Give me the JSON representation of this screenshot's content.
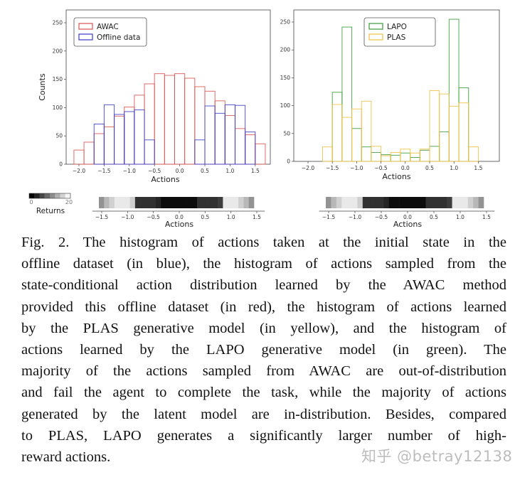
{
  "chart_data": [
    {
      "type": "histogram",
      "xlabel": "Actions",
      "ylabel": "Counts",
      "xlim": [
        -2.25,
        1.8
      ],
      "ylim": [
        0,
        270
      ],
      "xticks": [
        "-2.0",
        "-1.5",
        "-1.0",
        "-0.5",
        "0.0",
        "0.5",
        "1.0",
        "1.5"
      ],
      "yticks": [
        "0",
        "50",
        "100",
        "150",
        "200",
        "250"
      ],
      "legend_placement": "top-left",
      "bin_centers": [
        -2.0,
        -1.8,
        -1.6,
        -1.4,
        -1.2,
        -1.0,
        -0.8,
        -0.6,
        -0.4,
        -0.2,
        0.0,
        0.2,
        0.4,
        0.6,
        0.8,
        1.0,
        1.2,
        1.4,
        1.6
      ],
      "bin_width": 0.2,
      "series": [
        {
          "name": "AWAC",
          "color": "#d9534f",
          "values": [
            25,
            39,
            54,
            66,
            85,
            101,
            122,
            142,
            160,
            157,
            160,
            152,
            137,
            129,
            112,
            86,
            63,
            52,
            36
          ]
        },
        {
          "name": "Offline data",
          "color": "#3b3bc8",
          "values": [
            0,
            0,
            71,
            105,
            88,
            93,
            96,
            43,
            0,
            0,
            0,
            0,
            43,
            103,
            90,
            105,
            104,
            57,
            0
          ]
        }
      ]
    },
    {
      "type": "histogram",
      "xlabel": "Actions",
      "ylabel": "",
      "xlim": [
        -2.25,
        1.8
      ],
      "ylim": [
        0,
        270
      ],
      "xticks": [
        "-2.0",
        "-1.5",
        "-1.0",
        "-0.5",
        "0.0",
        "0.5",
        "1.0",
        "1.5"
      ],
      "yticks": [
        "0",
        "50",
        "100",
        "150",
        "200",
        "250"
      ],
      "legend_placement": "top-center",
      "bin_centers": [
        -2.0,
        -1.8,
        -1.6,
        -1.4,
        -1.2,
        -1.0,
        -0.8,
        -0.6,
        -0.4,
        -0.2,
        0.0,
        0.2,
        0.4,
        0.6,
        0.8,
        1.0,
        1.2,
        1.4,
        1.6
      ],
      "bin_width": 0.2,
      "series": [
        {
          "name": "LAPO",
          "color": "#3a9a3a",
          "values": [
            0,
            0,
            0,
            124,
            241,
            59,
            26,
            16,
            12,
            11,
            15,
            7,
            20,
            27,
            53,
            255,
            132,
            0,
            0
          ]
        },
        {
          "name": "PLAS",
          "color": "#f0c040",
          "values": [
            0,
            0,
            26,
            102,
            79,
            94,
            108,
            27,
            10,
            16,
            22,
            15,
            22,
            127,
            121,
            99,
            105,
            26,
            0
          ]
        }
      ]
    },
    {
      "type": "heatmap",
      "xlabel": "Actions",
      "xticks": [
        "-1.5",
        "-1.0",
        "-0.5",
        "0.0",
        "0.5",
        "1.0",
        "1.5"
      ],
      "xlim": [
        -1.6,
        1.6
      ],
      "cell_starts": [
        -1.5,
        -1.4,
        -1.3,
        -1.2,
        -1.1,
        -1.0,
        -0.9,
        -0.8,
        -0.7,
        -0.6,
        -0.5,
        -0.4,
        -0.3,
        -0.2,
        -0.1,
        0.0,
        0.1,
        0.2,
        0.3,
        0.4,
        0.5,
        0.6,
        0.7,
        0.8,
        0.9,
        1.0,
        1.1,
        1.2,
        1.3,
        1.4
      ],
      "cell_width": 0.1,
      "returns": [
        12,
        15,
        17,
        19,
        19,
        19,
        17,
        4,
        4,
        4,
        4,
        3,
        1,
        1,
        1,
        1,
        1,
        1,
        1,
        4,
        4,
        4,
        4,
        5,
        19,
        19,
        19,
        17,
        15,
        12
      ],
      "colorbar": {
        "label": "Returns",
        "min_label": "0",
        "max_label": "20",
        "min": 0,
        "max": 20,
        "low_color": "#000000",
        "high_color": "#ffffff"
      }
    }
  ],
  "caption_lines": [
    "Fig. 2.   The histogram of actions taken at the initial state in the",
    "offline dataset (in blue), the histogram of actions sampled from the",
    "state-conditional action distribution learned by the AWAC method",
    "provided this offline dataset (in red), the histogram of actions learned",
    "by the PLAS generative model (in yellow), and the histogram of",
    "actions learned by the LAPO generative model (in green).   The",
    "majority of the actions sampled from AWAC are out-of-distribution",
    "and fail the agent to complete the task, while the majority of actions",
    "generated by the latent model are in-distribution. Besides, compared",
    "to PLAS, LAPO generates a significantly larger number of high-",
    "reward actions."
  ],
  "watermark": "知乎 @betray12138"
}
